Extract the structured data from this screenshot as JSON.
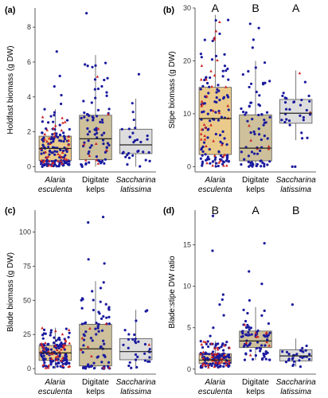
{
  "colors": {
    "alaria_fill": "#e8c57e",
    "digitate_fill": "#c8b98f",
    "saccharina_fill": "#d9d9d9",
    "box_stroke": "#555555",
    "median": "#222222",
    "point_blue": "#1a1a9e",
    "point_red": "#cc2222"
  },
  "chart_data": [
    {
      "type": "box",
      "panel": "(a)",
      "ylabel": "Holdfast biomass (g DW)",
      "ylim": [
        -0.3,
        9.1
      ],
      "yticks": [
        0,
        2,
        4,
        6,
        8
      ],
      "categories": [
        {
          "line1": "Alaria",
          "line2": "esculenta",
          "italic": true
        },
        {
          "line1": "Digitate",
          "line2": "kelps",
          "italic": false
        },
        {
          "line1": "Saccharina",
          "line2": "latissima",
          "italic": true
        }
      ],
      "significance": [
        "",
        "",
        ""
      ],
      "boxes": [
        {
          "q1": 0.35,
          "median": 1.05,
          "q3": 1.75,
          "whisker_low": 0.0,
          "whisker_high": 3.3,
          "n_blue": 120,
          "n_red": 40,
          "outliers": [
            3.6,
            4.1,
            4.6,
            5.2,
            6.6
          ]
        },
        {
          "q1": 0.4,
          "median": 1.6,
          "q3": 2.95,
          "whisker_low": 0.0,
          "whisker_high": 6.4,
          "n_blue": 75,
          "n_red": 10,
          "outliers": [
            8.8
          ]
        },
        {
          "q1": 0.75,
          "median": 1.25,
          "q3": 2.15,
          "whisker_low": 0.0,
          "whisker_high": 3.9,
          "n_blue": 30,
          "n_red": 0,
          "outliers": [
            5.3
          ]
        }
      ]
    },
    {
      "type": "box",
      "panel": "(b)",
      "ylabel": "Stipe biomass (g DW)",
      "ylim": [
        -1,
        30
      ],
      "yticks": [
        0,
        10,
        20,
        30
      ],
      "categories": [
        {
          "line1": "Alaria",
          "line2": "esculenta",
          "italic": true
        },
        {
          "line1": "Digitate",
          "line2": "kelps",
          "italic": false
        },
        {
          "line1": "Saccharina",
          "line2": "latissima",
          "italic": true
        }
      ],
      "significance": [
        "A",
        "B",
        "A"
      ],
      "boxes": [
        {
          "q1": 2.3,
          "median": 9.1,
          "q3": 15.0,
          "whisker_low": 0.0,
          "whisker_high": 28.7,
          "n_blue": 110,
          "n_red": 40,
          "outliers": []
        },
        {
          "q1": 1.1,
          "median": 3.5,
          "q3": 9.8,
          "whisker_low": 0.0,
          "whisker_high": 20.0,
          "n_blue": 70,
          "n_red": 5,
          "outliers": [
            22.5,
            24.0,
            26.2,
            27.0
          ]
        },
        {
          "q1": 8.2,
          "median": 10.1,
          "q3": 12.7,
          "whisker_low": 5.0,
          "whisker_high": 18.2,
          "n_blue": 28,
          "n_red": 2,
          "outliers": [
            0.0,
            0.0
          ]
        }
      ]
    },
    {
      "type": "box",
      "panel": "(c)",
      "ylabel": "Blade biomass (g DW)",
      "ylim": [
        -4,
        116
      ],
      "yticks": [
        0,
        25,
        50,
        75,
        100
      ],
      "categories": [
        {
          "line1": "Alaria",
          "line2": "esculenta",
          "italic": true
        },
        {
          "line1": "Digitate",
          "line2": "kelps",
          "italic": false
        },
        {
          "line1": "Saccharina",
          "line2": "latissima",
          "italic": true
        }
      ],
      "significance": [
        "",
        "",
        ""
      ],
      "boxes": [
        {
          "q1": 6.0,
          "median": 11.5,
          "q3": 17.0,
          "whisker_low": 0.0,
          "whisker_high": 30.0,
          "n_blue": 120,
          "n_red": 40,
          "outliers": []
        },
        {
          "q1": 2.0,
          "median": 14.5,
          "q3": 32.5,
          "whisker_low": 0.0,
          "whisker_high": 64.0,
          "n_blue": 75,
          "n_red": 8,
          "outliers": [
            77.0,
            80.0,
            107.0,
            111.0
          ]
        },
        {
          "q1": 6.5,
          "median": 12.5,
          "q3": 22.0,
          "whisker_low": 0.0,
          "whisker_high": 43.0,
          "n_blue": 30,
          "n_red": 1,
          "outliers": []
        }
      ]
    },
    {
      "type": "box",
      "panel": "(d)",
      "ylabel": "Blade:stipe DW ratio",
      "ylim": [
        -0.6,
        19.2
      ],
      "yticks": [
        0,
        5,
        10,
        15
      ],
      "categories": [
        {
          "line1": "Alaria",
          "line2": "esculenta",
          "italic": true
        },
        {
          "line1": "Digitate",
          "line2": "kelps",
          "italic": false
        },
        {
          "line1": "Saccharina",
          "line2": "latissima",
          "italic": true
        }
      ],
      "significance": [
        "B",
        "A",
        "B"
      ],
      "boxes": [
        {
          "q1": 0.7,
          "median": 1.1,
          "q3": 1.85,
          "whisker_low": 0.2,
          "whisker_high": 3.4,
          "n_blue": 115,
          "n_red": 40,
          "outliers": [
            4.0,
            5.0,
            6.5,
            7.8,
            8.4,
            9.0,
            14.3,
            18.5
          ]
        },
        {
          "q1": 2.6,
          "median": 3.4,
          "q3": 4.6,
          "whisker_low": 1.1,
          "whisker_high": 7.5,
          "n_blue": 70,
          "n_red": 10,
          "outliers": [
            8.3,
            10.3,
            11.8,
            15.2
          ]
        },
        {
          "q1": 1.0,
          "median": 1.6,
          "q3": 2.35,
          "whisker_low": 0.3,
          "whisker_high": 3.7,
          "n_blue": 28,
          "n_red": 0,
          "outliers": [
            7.8
          ]
        }
      ]
    }
  ]
}
